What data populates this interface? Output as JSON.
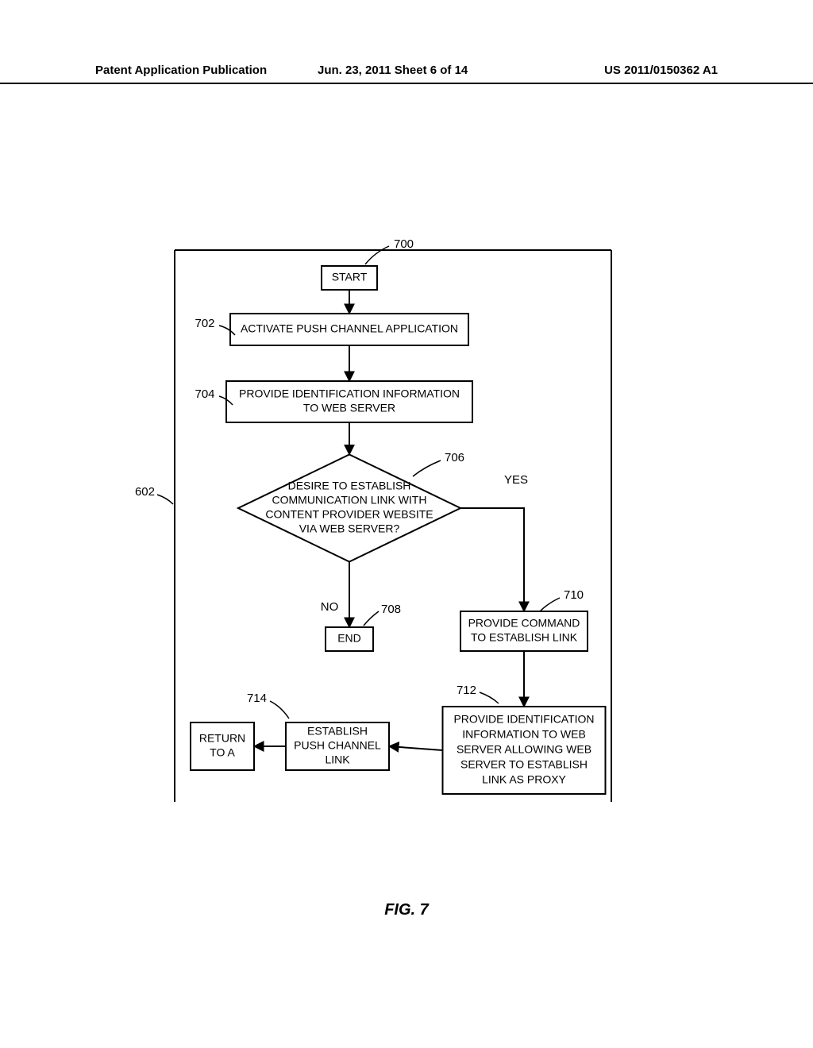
{
  "header": {
    "left": "Patent Application Publication",
    "center": "Jun. 23, 2011  Sheet 6 of 14",
    "right": "US 2011/0150362 A1"
  },
  "figure_label": "FIG. 7",
  "labels": {
    "l700": "700",
    "l702": "702",
    "l704": "704",
    "l706": "706",
    "l602": "602",
    "l708": "708",
    "l710": "710",
    "l712": "712",
    "l714": "714",
    "yes": "YES",
    "no": "NO"
  },
  "boxes": {
    "start": "START",
    "activate": "ACTIVATE PUSH CHANNEL APPLICATION",
    "provide_id": [
      "PROVIDE IDENTIFICATION INFORMATION",
      "TO WEB SERVER"
    ],
    "decision": [
      "DESIRE TO ESTABLISH",
      "COMMUNICATION LINK WITH",
      "CONTENT PROVIDER WEBSITE",
      "VIA WEB SERVER?"
    ],
    "end": "END",
    "provide_cmd": [
      "PROVIDE COMMAND",
      "TO ESTABLISH LINK"
    ],
    "provide_id2": [
      "PROVIDE IDENTIFICATION",
      "INFORMATION TO WEB",
      "SERVER ALLOWING WEB",
      "SERVER TO ESTABLISH",
      "LINK AS PROXY"
    ],
    "establish": [
      "ESTABLISH",
      "PUSH CHANNEL",
      "LINK"
    ],
    "return": [
      "RETURN",
      "TO A"
    ]
  },
  "style": {
    "stroke": "#000000",
    "stroke_width": 2,
    "font_size": 14,
    "font_family": "Arial, Helvetica, sans-serif",
    "bg": "#ffffff",
    "label_font_size": 15
  }
}
